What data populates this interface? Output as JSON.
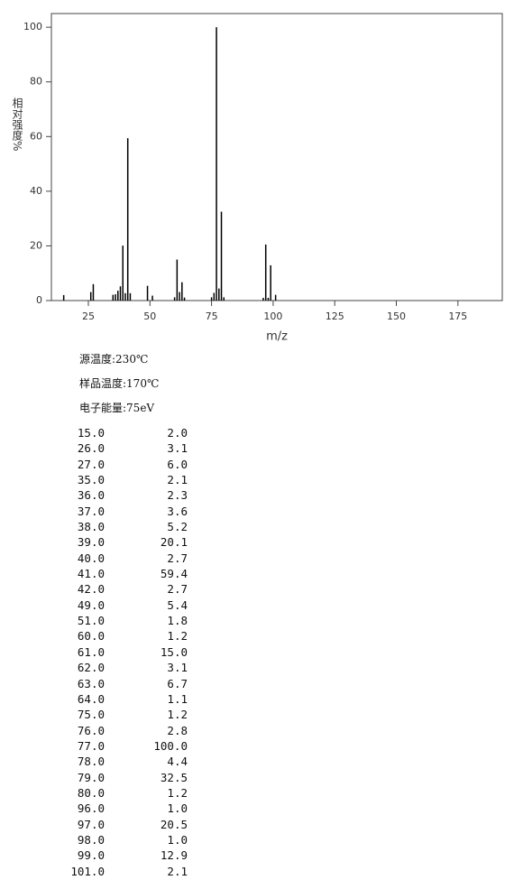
{
  "chart_data": {
    "type": "bar",
    "y_label": "相对强度%",
    "x_label": "m/z",
    "x": [
      15,
      26,
      27,
      35,
      36,
      37,
      38,
      39,
      40,
      41,
      42,
      49,
      51,
      60,
      61,
      62,
      63,
      64,
      75,
      76,
      77,
      78,
      79,
      80,
      96,
      97,
      98,
      99,
      101
    ],
    "values": [
      2.0,
      3.1,
      6.0,
      2.1,
      2.3,
      3.6,
      5.2,
      20.1,
      2.7,
      59.4,
      2.7,
      5.4,
      1.8,
      1.2,
      15.0,
      3.1,
      6.7,
      1.1,
      1.2,
      2.8,
      100.0,
      4.4,
      32.5,
      1.2,
      1.0,
      20.5,
      1.0,
      12.9,
      2.1
    ],
    "color": "#000000",
    "xlim": [
      10,
      193
    ],
    "xticks": [
      25,
      50,
      75,
      100,
      125,
      150,
      175
    ],
    "ylim": [
      0,
      105
    ],
    "yticks": [
      0,
      20,
      40,
      60,
      80,
      100
    ]
  },
  "info": [
    "源温度:230℃",
    "样品温度:170℃",
    "电子能量:75eV"
  ],
  "peak_table": {
    "rows": [
      [
        "15.0",
        "2.0"
      ],
      [
        "26.0",
        "3.1"
      ],
      [
        "27.0",
        "6.0"
      ],
      [
        "35.0",
        "2.1"
      ],
      [
        "36.0",
        "2.3"
      ],
      [
        "37.0",
        "3.6"
      ],
      [
        "38.0",
        "5.2"
      ],
      [
        "39.0",
        "20.1"
      ],
      [
        "40.0",
        "2.7"
      ],
      [
        "41.0",
        "59.4"
      ],
      [
        "42.0",
        "2.7"
      ],
      [
        "49.0",
        "5.4"
      ],
      [
        "51.0",
        "1.8"
      ],
      [
        "60.0",
        "1.2"
      ],
      [
        "61.0",
        "15.0"
      ],
      [
        "62.0",
        "3.1"
      ],
      [
        "63.0",
        "6.7"
      ],
      [
        "64.0",
        "1.1"
      ],
      [
        "75.0",
        "1.2"
      ],
      [
        "76.0",
        "2.8"
      ],
      [
        "77.0",
        "100.0"
      ],
      [
        "78.0",
        "4.4"
      ],
      [
        "79.0",
        "32.5"
      ],
      [
        "80.0",
        "1.2"
      ],
      [
        "96.0",
        "1.0"
      ],
      [
        "97.0",
        "20.5"
      ],
      [
        "98.0",
        "1.0"
      ],
      [
        "99.0",
        "12.9"
      ],
      [
        "101.0",
        "2.1"
      ]
    ]
  }
}
